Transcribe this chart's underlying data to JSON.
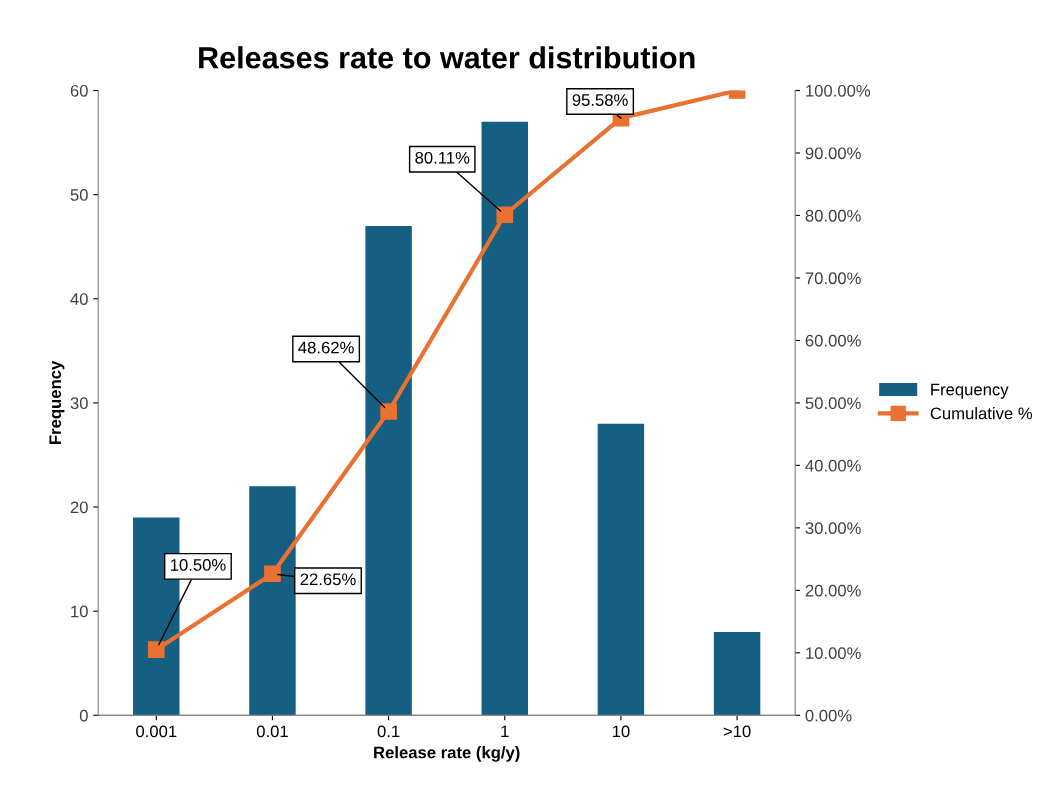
{
  "chart_data": {
    "type": "bar",
    "title": "Releases rate to water distribution",
    "xlabel": "Release rate (kg/y)",
    "ylabel": "Frequency",
    "categories": [
      "0.001",
      "0.01",
      "0.1",
      "1",
      "10",
      ">10"
    ],
    "series": [
      {
        "name": "Frequency",
        "color": "#156082",
        "values": [
          19,
          22,
          47,
          57,
          28,
          8
        ]
      },
      {
        "name": "Cumulative %",
        "type": "line",
        "axis": "y2",
        "color": "#e97132",
        "marker": "square",
        "values": [
          10.5,
          22.65,
          48.62,
          80.11,
          95.58,
          100
        ],
        "value_labels": [
          "10.50%",
          "22.65%",
          "48.62%",
          "80.11%",
          "95.58%",
          null
        ]
      }
    ],
    "ylim": [
      0,
      60
    ],
    "yticks": [
      0,
      10,
      20,
      30,
      40,
      50,
      60
    ],
    "y2lim": [
      0,
      100
    ],
    "y2ticks": [
      {
        "value": 0,
        "label": "0.00%"
      },
      {
        "value": 10,
        "label": "10.00%"
      },
      {
        "value": 20,
        "label": "20.00%"
      },
      {
        "value": 30,
        "label": "30.00%"
      },
      {
        "value": 40,
        "label": "40.00%"
      },
      {
        "value": 50,
        "label": "50.00%"
      },
      {
        "value": 60,
        "label": "60.00%"
      },
      {
        "value": 70,
        "label": "70.00%"
      },
      {
        "value": 80,
        "label": "80.00%"
      },
      {
        "value": 90,
        "label": "90.00%"
      },
      {
        "value": 100,
        "label": "100.00%"
      }
    ],
    "grid": false,
    "legend": "right"
  }
}
